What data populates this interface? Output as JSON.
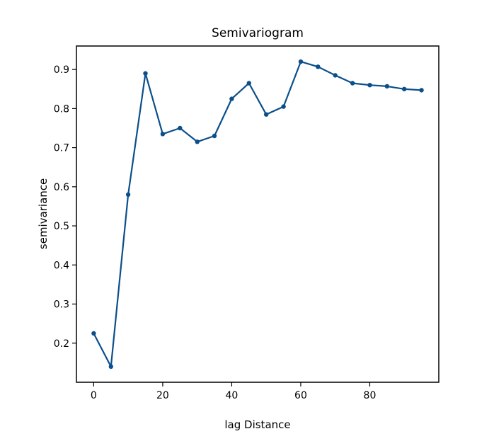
{
  "chart_data": {
    "type": "line",
    "title": "Semivariogram",
    "xlabel": "lag Distance",
    "ylabel": "semivariance",
    "xlim": [
      -5,
      100
    ],
    "ylim": [
      0.1,
      0.96
    ],
    "xticks": [
      0,
      20,
      40,
      60,
      80
    ],
    "yticks": [
      0.2,
      0.3,
      0.4,
      0.5,
      0.6,
      0.7,
      0.8,
      0.9
    ],
    "x_tick_labels": [
      "0",
      "20",
      "40",
      "60",
      "80"
    ],
    "y_tick_labels": [
      "0.2",
      "0.3",
      "0.4",
      "0.5",
      "0.6",
      "0.7",
      "0.8",
      "0.9"
    ],
    "grid": false,
    "series_color": "#0b4f8a",
    "x": [
      0,
      5,
      10,
      15,
      20,
      25,
      30,
      35,
      40,
      45,
      50,
      55,
      60,
      65,
      70,
      75,
      80,
      85,
      90,
      95
    ],
    "values": [
      0.225,
      0.14,
      0.58,
      0.89,
      0.735,
      0.75,
      0.715,
      0.73,
      0.825,
      0.865,
      0.785,
      0.805,
      0.92,
      0.907,
      0.885,
      0.865,
      0.86,
      0.857,
      0.85,
      0.847
    ]
  }
}
